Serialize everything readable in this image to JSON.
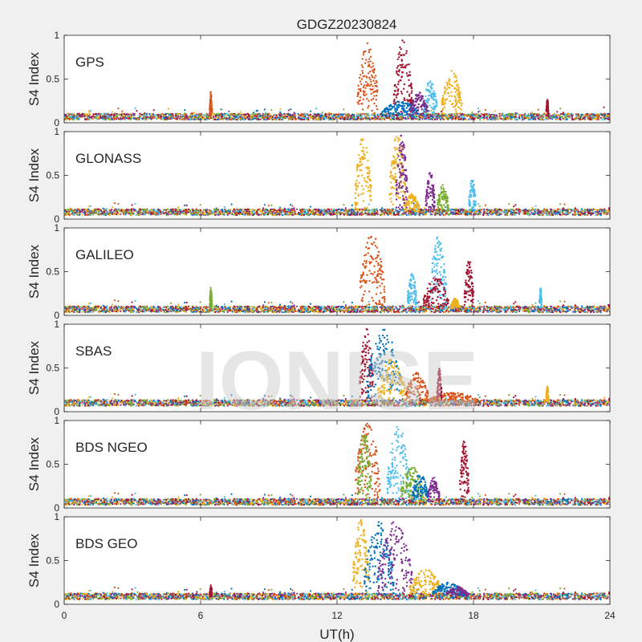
{
  "figure": {
    "title": "GDGZ20230824",
    "watermark": "IONISE",
    "xlabel": "UT(h)",
    "ylabel": "S4 Index",
    "background": "#f0f0f0"
  },
  "chart_data": {
    "type": "scatter",
    "title": "GDGZ20230824",
    "xlabel": "UT(h)",
    "ylabel": "S4 Index",
    "xlim": [
      0,
      24
    ],
    "ylim": [
      0,
      1
    ],
    "xticks": [
      "0",
      "6",
      "12",
      "18",
      "24"
    ],
    "xtick_values": [
      0,
      6,
      12,
      18,
      24
    ],
    "yticks": [
      "0",
      "0.5",
      "1"
    ],
    "ytick_values": [
      0,
      0.5,
      1
    ],
    "grid": false,
    "colors": [
      "#0072BD",
      "#D95319",
      "#EDB120",
      "#7E2F8E",
      "#77AC30",
      "#4DBEEE",
      "#A2142F"
    ],
    "panels": [
      {
        "label": "GPS",
        "baseline": 0.07,
        "events": [
          {
            "x0": 12.9,
            "x1": 13.8,
            "ymax": 0.92,
            "color": 1
          },
          {
            "x0": 14.5,
            "x1": 15.3,
            "ymax": 0.95,
            "color": 6
          },
          {
            "x0": 14.0,
            "x1": 15.6,
            "ymax": 0.25,
            "color": 0
          },
          {
            "x0": 15.8,
            "x1": 16.4,
            "ymax": 0.5,
            "color": 5
          },
          {
            "x0": 16.6,
            "x1": 17.5,
            "ymax": 0.6,
            "color": 2
          },
          {
            "x0": 15.2,
            "x1": 16.0,
            "ymax": 0.35,
            "color": 3
          },
          {
            "x0": 6.4,
            "x1": 6.5,
            "ymax": 0.36,
            "color": 1
          },
          {
            "x0": 21.2,
            "x1": 21.3,
            "ymax": 0.27,
            "color": 6
          }
        ]
      },
      {
        "label": "GLONASS",
        "baseline": 0.08,
        "events": [
          {
            "x0": 12.8,
            "x1": 13.5,
            "ymax": 0.95,
            "color": 2
          },
          {
            "x0": 14.3,
            "x1": 15.0,
            "ymax": 0.98,
            "color": 2
          },
          {
            "x0": 14.6,
            "x1": 15.1,
            "ymax": 0.99,
            "color": 3
          },
          {
            "x0": 15.0,
            "x1": 15.6,
            "ymax": 0.3,
            "color": 2
          },
          {
            "x0": 15.9,
            "x1": 16.3,
            "ymax": 0.55,
            "color": 3
          },
          {
            "x0": 16.4,
            "x1": 16.9,
            "ymax": 0.4,
            "color": 4
          },
          {
            "x0": 17.8,
            "x1": 18.1,
            "ymax": 0.47,
            "color": 5
          }
        ]
      },
      {
        "label": "GALILEO",
        "baseline": 0.07,
        "events": [
          {
            "x0": 13.0,
            "x1": 14.1,
            "ymax": 0.95,
            "color": 1
          },
          {
            "x0": 15.1,
            "x1": 15.5,
            "ymax": 0.5,
            "color": 5
          },
          {
            "x0": 16.1,
            "x1": 16.8,
            "ymax": 0.92,
            "color": 5
          },
          {
            "x0": 15.8,
            "x1": 16.9,
            "ymax": 0.45,
            "color": 6
          },
          {
            "x0": 17.6,
            "x1": 18.0,
            "ymax": 0.65,
            "color": 6
          },
          {
            "x0": 17.0,
            "x1": 17.4,
            "ymax": 0.2,
            "color": 2
          },
          {
            "x0": 20.9,
            "x1": 21.0,
            "ymax": 0.32,
            "color": 5
          },
          {
            "x0": 6.4,
            "x1": 6.5,
            "ymax": 0.32,
            "color": 4
          }
        ]
      },
      {
        "label": "SBAS",
        "baseline": 0.1,
        "events": [
          {
            "x0": 13.0,
            "x1": 13.6,
            "ymax": 0.95,
            "color": 6
          },
          {
            "x0": 13.3,
            "x1": 14.8,
            "ymax": 0.95,
            "color": 0
          },
          {
            "x0": 13.8,
            "x1": 15.0,
            "ymax": 0.6,
            "color": 2
          },
          {
            "x0": 15.0,
            "x1": 16.0,
            "ymax": 0.45,
            "color": 1
          },
          {
            "x0": 16.0,
            "x1": 18.2,
            "ymax": 0.22,
            "color": 1
          },
          {
            "x0": 16.4,
            "x1": 16.6,
            "ymax": 0.5,
            "color": 6
          },
          {
            "x0": 21.2,
            "x1": 21.3,
            "ymax": 0.3,
            "color": 2
          }
        ]
      },
      {
        "label": "BDS NGEO",
        "baseline": 0.07,
        "events": [
          {
            "x0": 12.8,
            "x1": 13.9,
            "ymax": 0.98,
            "color": 1
          },
          {
            "x0": 12.9,
            "x1": 13.5,
            "ymax": 0.9,
            "color": 4
          },
          {
            "x0": 14.2,
            "x1": 15.2,
            "ymax": 0.95,
            "color": 5
          },
          {
            "x0": 14.8,
            "x1": 15.8,
            "ymax": 0.5,
            "color": 4
          },
          {
            "x0": 15.3,
            "x1": 16.0,
            "ymax": 0.4,
            "color": 0
          },
          {
            "x0": 17.4,
            "x1": 17.8,
            "ymax": 0.8,
            "color": 6
          },
          {
            "x0": 16.0,
            "x1": 16.5,
            "ymax": 0.35,
            "color": 3
          }
        ]
      },
      {
        "label": "BDS GEO",
        "baseline": 0.09,
        "events": [
          {
            "x0": 12.7,
            "x1": 13.4,
            "ymax": 0.98,
            "color": 2
          },
          {
            "x0": 13.2,
            "x1": 14.5,
            "ymax": 0.95,
            "color": 0
          },
          {
            "x0": 13.8,
            "x1": 15.3,
            "ymax": 0.95,
            "color": 3
          },
          {
            "x0": 15.2,
            "x1": 16.6,
            "ymax": 0.4,
            "color": 2
          },
          {
            "x0": 16.2,
            "x1": 17.6,
            "ymax": 0.25,
            "color": 0
          },
          {
            "x0": 16.8,
            "x1": 17.8,
            "ymax": 0.2,
            "color": 3
          },
          {
            "x0": 6.4,
            "x1": 6.5,
            "ymax": 0.22,
            "color": 6
          }
        ]
      }
    ]
  }
}
